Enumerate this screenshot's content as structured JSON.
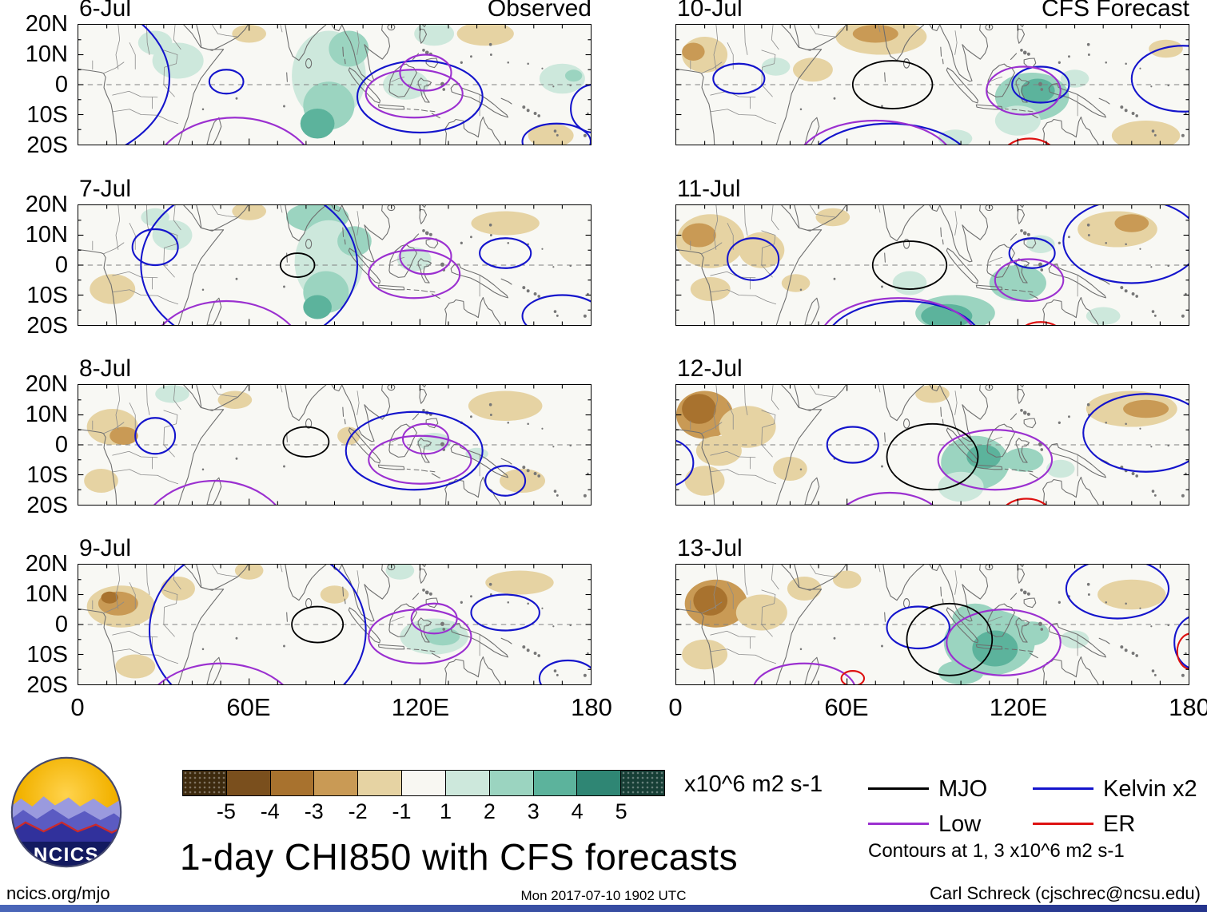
{
  "meta": {
    "title": "1-day CHI850 with CFS forecasts",
    "units_label": "x10^6 m2 s-1",
    "contours_note": "Contours at 1, 3 x10^6 m2 s-1",
    "footer_left": "ncics.org/mjo",
    "footer_center": "Mon 2017-07-10 1902 UTC",
    "footer_right": "Carl Schreck (cjschrec@ncsu.edu)",
    "logo_text": "NCICS"
  },
  "legend": {
    "items": [
      {
        "key": "mjo",
        "label": "MJO",
        "color": "#000000"
      },
      {
        "key": "low",
        "label": "Low",
        "color": "#9b30d0"
      },
      {
        "key": "kelvin",
        "label": "Kelvin x2",
        "color": "#1414cc"
      },
      {
        "key": "er",
        "label": "ER",
        "color": "#dd1111"
      }
    ]
  },
  "colorbar": {
    "tick_labels": [
      "-5",
      "-4",
      "-3",
      "-2",
      "-1",
      "1",
      "2",
      "3",
      "4",
      "5"
    ],
    "segment_colors": [
      "#3d2a0e",
      "#7a4f1d",
      "#a8722e",
      "#c99a55",
      "#e6d3a3",
      "#f8f7f2",
      "#cde8dc",
      "#9bd4c0",
      "#5cb39c",
      "#2f8674",
      "#173f36"
    ]
  },
  "chart_data": {
    "type": "filled-contour map grid (850 hPa velocity potential anomalies with wave contours)",
    "column_titles": {
      "left": "Observed",
      "right": "CFS Forecast"
    },
    "axes": {
      "lon_range_deg_east": [
        0,
        180
      ],
      "lat_range_deg_north": [
        -20,
        20
      ],
      "x_tick_labels": [
        "0",
        "60E",
        "120E",
        "180"
      ],
      "y_tick_labels": [
        "20N",
        "10N",
        "0",
        "10S",
        "20S"
      ]
    },
    "shading_levels": [
      -5,
      -4,
      -3,
      -2,
      -1,
      1,
      2,
      3,
      4,
      5
    ],
    "shading_format": "[lon_east, lat_north, rx_deg, ry_deg, level]",
    "contour_format": "[wave, lon_east, lat_north, rx_deg, ry_deg]",
    "panels": [
      {
        "date": "6-Jul",
        "shading": [
          [
            35,
            8,
            9,
            6,
            1
          ],
          [
            27,
            14,
            6,
            4,
            1
          ],
          [
            88,
            3,
            13,
            15,
            1
          ],
          [
            95,
            12,
            7,
            6,
            2
          ],
          [
            88,
            -7,
            9,
            8,
            2
          ],
          [
            84,
            -13,
            6,
            5,
            3
          ],
          [
            115,
            0,
            8,
            5,
            1
          ],
          [
            125,
            17,
            7,
            4,
            1
          ],
          [
            170,
            2,
            8,
            5,
            1
          ],
          [
            174,
            3,
            3,
            2,
            2
          ],
          [
            143,
            17,
            10,
            4,
            -1
          ],
          [
            60,
            17,
            6,
            3,
            -1
          ],
          [
            166,
            -17,
            8,
            4,
            -1
          ]
        ],
        "contours": [
          [
            "kelvin",
            -15,
            2,
            47,
            30
          ],
          [
            "kelvin",
            52,
            1,
            6,
            4
          ],
          [
            "kelvin",
            120,
            -4,
            22,
            12
          ],
          [
            "kelvin",
            168,
            -19,
            12,
            6
          ],
          [
            "kelvin",
            181,
            -8,
            8,
            8
          ],
          [
            "low",
            55,
            -33,
            30,
            22
          ],
          [
            "low",
            118,
            -3,
            17,
            8
          ],
          [
            "low",
            122,
            4,
            9,
            6
          ]
        ]
      },
      {
        "date": "7-Jul",
        "shading": [
          [
            33,
            10,
            7,
            5,
            1
          ],
          [
            27,
            16,
            5,
            3,
            1
          ],
          [
            84,
            16,
            11,
            5,
            2
          ],
          [
            88,
            1,
            12,
            14,
            1
          ],
          [
            87,
            -9,
            8,
            7,
            2
          ],
          [
            84,
            -14,
            5,
            4,
            3
          ],
          [
            97,
            8,
            6,
            5,
            2
          ],
          [
            118,
            2,
            6,
            4,
            1
          ],
          [
            12,
            -8,
            8,
            5,
            -1
          ],
          [
            150,
            14,
            12,
            4,
            -1
          ],
          [
            60,
            18,
            6,
            3,
            -1
          ]
        ],
        "contours": [
          [
            "kelvin",
            27,
            6,
            8,
            6
          ],
          [
            "kelvin",
            60,
            0,
            38,
            28
          ],
          [
            "kelvin",
            150,
            4,
            9,
            5
          ],
          [
            "kelvin",
            170,
            -17,
            14,
            7
          ],
          [
            "low",
            52,
            -32,
            28,
            20
          ],
          [
            "low",
            118,
            -3,
            16,
            8
          ],
          [
            "low",
            122,
            3,
            9,
            6
          ],
          [
            "mjo",
            77,
            0,
            6,
            4
          ]
        ]
      },
      {
        "date": "8-Jul",
        "shading": [
          [
            12,
            6,
            9,
            6,
            -1
          ],
          [
            16,
            3,
            5,
            3,
            -2
          ],
          [
            55,
            15,
            6,
            3,
            -1
          ],
          [
            150,
            13,
            13,
            5,
            -1
          ],
          [
            156,
            -12,
            8,
            4,
            -1
          ],
          [
            95,
            3,
            4,
            3,
            -1
          ],
          [
            8,
            -12,
            6,
            4,
            -1
          ],
          [
            33,
            17,
            6,
            3,
            1
          ],
          [
            125,
            1,
            6,
            3,
            1
          ],
          [
            140,
            -3,
            4,
            2,
            1
          ]
        ],
        "contours": [
          [
            "kelvin",
            27,
            3,
            7,
            6
          ],
          [
            "kelvin",
            118,
            -2,
            24,
            13
          ],
          [
            "kelvin",
            150,
            -12,
            7,
            5
          ],
          [
            "low",
            48,
            -33,
            27,
            21
          ],
          [
            "low",
            120,
            -5,
            18,
            8
          ],
          [
            "low",
            122,
            2,
            8,
            5
          ],
          [
            "mjo",
            80,
            1,
            8,
            5
          ]
        ]
      },
      {
        "date": "9-Jul",
        "shading": [
          [
            15,
            6,
            12,
            7,
            -1
          ],
          [
            14,
            7,
            7,
            4,
            -2
          ],
          [
            11,
            9,
            3,
            2,
            -3
          ],
          [
            35,
            12,
            6,
            4,
            -1
          ],
          [
            90,
            10,
            5,
            3,
            -1
          ],
          [
            60,
            18,
            5,
            3,
            -1
          ],
          [
            155,
            14,
            12,
            4,
            -1
          ],
          [
            20,
            -14,
            7,
            4,
            -1
          ],
          [
            125,
            -4,
            12,
            6,
            1
          ],
          [
            128,
            -4,
            6,
            3,
            2
          ],
          [
            113,
            18,
            5,
            3,
            1
          ]
        ],
        "contours": [
          [
            "kelvin",
            150,
            4,
            12,
            6
          ],
          [
            "kelvin",
            63,
            -2,
            38,
            30
          ],
          [
            "kelvin",
            172,
            -18,
            10,
            6
          ],
          [
            "low",
            50,
            -32,
            28,
            19
          ],
          [
            "low",
            120,
            -4,
            18,
            9
          ],
          [
            "low",
            125,
            2,
            8,
            5
          ],
          [
            "mjo",
            84,
            0,
            9,
            6
          ]
        ]
      },
      {
        "date": "10-Jul",
        "shading": [
          [
            72,
            16,
            16,
            6,
            -1
          ],
          [
            70,
            17,
            8,
            3,
            -2
          ],
          [
            10,
            10,
            8,
            6,
            -1
          ],
          [
            6,
            11,
            4,
            3,
            -2
          ],
          [
            48,
            5,
            7,
            4,
            -1
          ],
          [
            165,
            -17,
            12,
            5,
            -1
          ],
          [
            172,
            12,
            6,
            3,
            -1
          ],
          [
            125,
            -4,
            13,
            8,
            2
          ],
          [
            127,
            -2,
            6,
            4,
            3
          ],
          [
            120,
            -12,
            8,
            5,
            1
          ],
          [
            35,
            6,
            5,
            3,
            1
          ],
          [
            98,
            -18,
            6,
            3,
            1
          ],
          [
            140,
            2,
            5,
            3,
            1
          ]
        ],
        "contours": [
          [
            "kelvin",
            22,
            2,
            9,
            5
          ],
          [
            "kelvin",
            178,
            2,
            18,
            11
          ],
          [
            "kelvin",
            128,
            0,
            10,
            6
          ],
          [
            "kelvin",
            75,
            -29,
            30,
            16
          ],
          [
            "low",
            70,
            -27,
            28,
            15
          ],
          [
            "low",
            122,
            -2,
            13,
            8
          ],
          [
            "mjo",
            76,
            0,
            14,
            8
          ],
          [
            "er",
            124,
            -25,
            10,
            7
          ]
        ]
      },
      {
        "date": "11-Jul",
        "shading": [
          [
            12,
            8,
            12,
            9,
            -1
          ],
          [
            8,
            10,
            6,
            4,
            -2
          ],
          [
            30,
            5,
            8,
            6,
            -1
          ],
          [
            55,
            16,
            6,
            3,
            -1
          ],
          [
            155,
            12,
            14,
            6,
            -1
          ],
          [
            160,
            14,
            6,
            3,
            -2
          ],
          [
            12,
            -8,
            7,
            4,
            -1
          ],
          [
            42,
            -6,
            5,
            3,
            -1
          ],
          [
            98,
            -16,
            14,
            6,
            2
          ],
          [
            95,
            -17,
            9,
            4,
            3
          ],
          [
            120,
            -6,
            10,
            6,
            2
          ],
          [
            82,
            -6,
            6,
            4,
            1
          ],
          [
            128,
            7,
            5,
            3,
            1
          ],
          [
            150,
            -17,
            6,
            3,
            1
          ]
        ],
        "contours": [
          [
            "kelvin",
            27,
            2,
            9,
            7
          ],
          [
            "kelvin",
            160,
            8,
            24,
            14
          ],
          [
            "kelvin",
            80,
            -27,
            28,
            15
          ],
          [
            "kelvin",
            125,
            4,
            8,
            5
          ],
          [
            "low",
            78,
            -26,
            28,
            15
          ],
          [
            "low",
            124,
            -5,
            12,
            7
          ],
          [
            "mjo",
            82,
            0,
            13,
            8
          ],
          [
            "er",
            128,
            -24,
            8,
            5
          ]
        ]
      },
      {
        "date": "12-Jul",
        "shading": [
          [
            10,
            10,
            10,
            8,
            -2
          ],
          [
            8,
            12,
            6,
            5,
            -3
          ],
          [
            25,
            6,
            10,
            7,
            -1
          ],
          [
            15,
            -2,
            8,
            5,
            -1
          ],
          [
            10,
            -12,
            7,
            5,
            -1
          ],
          [
            40,
            -8,
            6,
            4,
            -1
          ],
          [
            90,
            17,
            6,
            3,
            -1
          ],
          [
            160,
            12,
            16,
            6,
            -1
          ],
          [
            165,
            12,
            8,
            3,
            -2
          ],
          [
            105,
            -6,
            12,
            9,
            2
          ],
          [
            108,
            -4,
            6,
            4,
            3
          ],
          [
            100,
            -14,
            8,
            5,
            1
          ],
          [
            122,
            -5,
            7,
            4,
            2
          ],
          [
            135,
            -8,
            5,
            3,
            1
          ]
        ],
        "contours": [
          [
            "kelvin",
            62,
            0,
            9,
            6
          ],
          [
            "kelvin",
            165,
            4,
            22,
            13
          ],
          [
            "kelvin",
            -4,
            -6,
            10,
            8
          ],
          [
            "low",
            112,
            -5,
            20,
            10
          ],
          [
            "low",
            75,
            -28,
            20,
            12
          ],
          [
            "mjo",
            90,
            -4,
            16,
            11
          ],
          [
            "er",
            123,
            -24,
            9,
            6
          ]
        ]
      },
      {
        "date": "13-Jul",
        "shading": [
          [
            14,
            7,
            11,
            8,
            -2
          ],
          [
            12,
            8,
            6,
            5,
            -3
          ],
          [
            30,
            4,
            9,
            6,
            -1
          ],
          [
            10,
            -10,
            8,
            5,
            -1
          ],
          [
            45,
            12,
            6,
            4,
            -1
          ],
          [
            60,
            15,
            5,
            3,
            -1
          ],
          [
            160,
            10,
            12,
            5,
            -1
          ],
          [
            110,
            -6,
            16,
            11,
            2
          ],
          [
            112,
            -8,
            8,
            6,
            3
          ],
          [
            105,
            2,
            8,
            5,
            2
          ],
          [
            100,
            -16,
            8,
            4,
            2
          ],
          [
            125,
            -3,
            6,
            4,
            2
          ],
          [
            140,
            -5,
            5,
            3,
            1
          ]
        ],
        "contours": [
          [
            "kelvin",
            85,
            -1,
            11,
            7
          ],
          [
            "kelvin",
            155,
            12,
            18,
            10
          ],
          [
            "kelvin",
            183,
            -6,
            8,
            9
          ],
          [
            "low",
            115,
            -6,
            20,
            11
          ],
          [
            "low",
            45,
            -22,
            18,
            9
          ],
          [
            "mjo",
            96,
            -5,
            15,
            12
          ],
          [
            "er",
            62,
            -18,
            4,
            2.5
          ],
          [
            "er",
            181,
            -9,
            5,
            6
          ]
        ]
      }
    ]
  }
}
